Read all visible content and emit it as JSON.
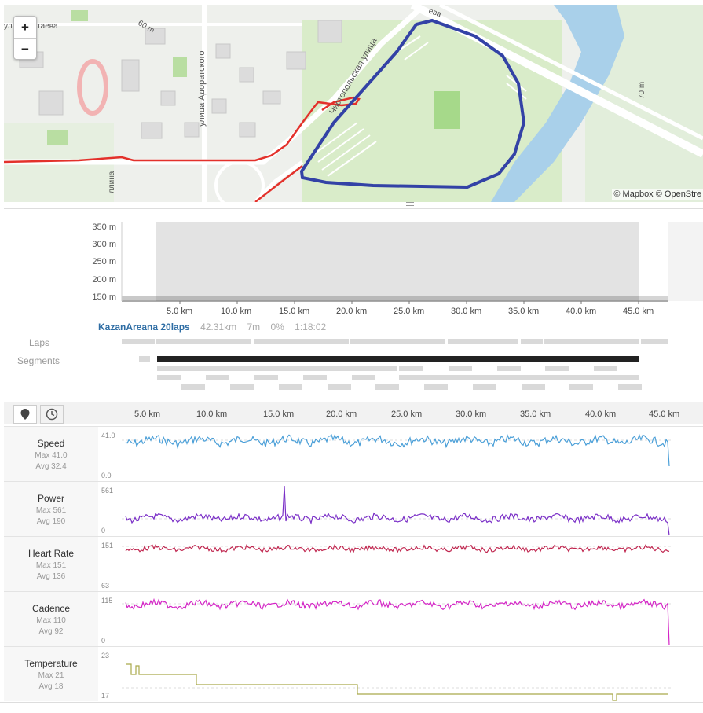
{
  "map": {
    "zoom_in": "+",
    "zoom_out": "−",
    "attribution": "© Mapbox © OpenStre",
    "street_labels": [
      "улица Четаева",
      "60 m",
      "улица Адоратского",
      "Чистопольская улица",
      "ева",
      "70 m",
      "ллина"
    ],
    "colors": {
      "route": "#e3312b",
      "lap_route": "#3342a6",
      "water": "#a9d0ea",
      "park": "#d6ecc4",
      "field": "#a6d98a"
    }
  },
  "elevation": {
    "y_ticks": [
      "350 m",
      "300 m",
      "250 m",
      "200 m",
      "150 m"
    ],
    "x_ticks": [
      "5.0 km",
      "10.0 km",
      "15.0 km",
      "20.0 km",
      "25.0 km",
      "30.0 km",
      "35.0 km",
      "40.0 km",
      "45.0 km"
    ],
    "summary": {
      "name": "KazanAreana 20laps",
      "distance": "42.31km",
      "elevation_gain": "7m",
      "grade": "0%",
      "time": "1:18:02"
    },
    "laps_label": "Laps",
    "segments_label": "Segments"
  },
  "streams": {
    "x_ticks": [
      "5.0 km",
      "10.0 km",
      "15.0 km",
      "20.0 km",
      "25.0 km",
      "30.0 km",
      "35.0 km",
      "40.0 km",
      "45.0 km"
    ],
    "rows": [
      {
        "name": "Speed",
        "max": "Max 41.0",
        "avg": "Avg 32.4",
        "top": "41.0",
        "bottom": "0.0",
        "color": "#4a9fd8"
      },
      {
        "name": "Power",
        "max": "Max 561",
        "avg": "Avg 190",
        "top": "561",
        "bottom": "0",
        "color": "#7a2fc7"
      },
      {
        "name": "Heart Rate",
        "max": "Max 151",
        "avg": "Avg 136",
        "top": "151",
        "bottom": "63",
        "color": "#c0264f"
      },
      {
        "name": "Cadence",
        "max": "Max 110",
        "avg": "Avg 92",
        "top": "115",
        "bottom": "0",
        "color": "#d424c6"
      },
      {
        "name": "Temperature",
        "max": "Max 21",
        "avg": "Avg 18",
        "top": "23",
        "bottom": "17",
        "color": "#a9a94b"
      }
    ]
  }
}
